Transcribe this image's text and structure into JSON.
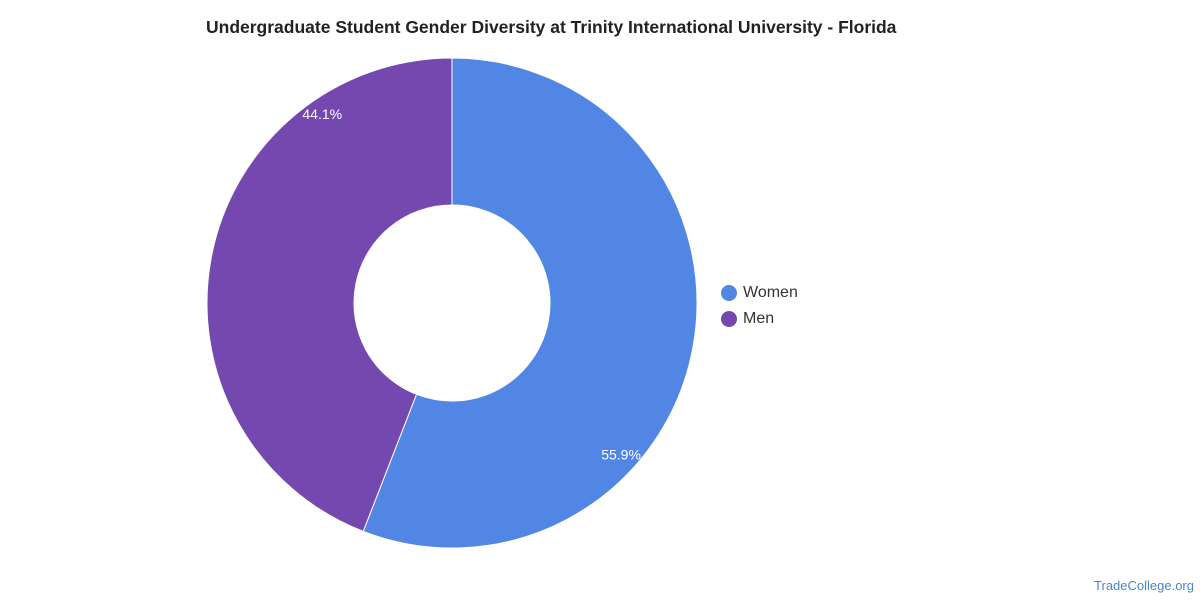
{
  "title": "Undergraduate Student Gender Diversity at Trinity International University - Florida",
  "source": "TradeCollege.org",
  "chart_data": {
    "type": "pie",
    "donut": true,
    "start_angle_deg": 0,
    "direction": "clockwise",
    "legend_position": "right",
    "series": [
      {
        "name": "Women",
        "value": 55.9,
        "label": "55.9%",
        "color": "#5286e4"
      },
      {
        "name": "Men",
        "value": 44.1,
        "label": "44.1%",
        "color": "#7548b0"
      }
    ]
  }
}
